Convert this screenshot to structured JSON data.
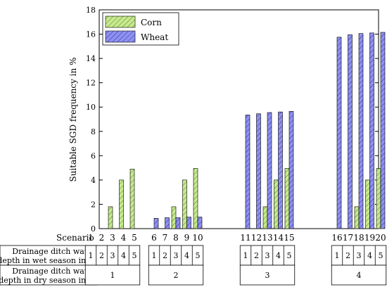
{
  "chart_data": {
    "type": "bar",
    "ylabel": "Suitable SGD frequency in %",
    "ylim": [
      0,
      18
    ],
    "yticks": [
      0,
      2,
      4,
      6,
      8,
      10,
      12,
      14,
      16,
      18
    ],
    "scenario_label": "Scenario",
    "categories": [
      "1",
      "2",
      "3",
      "4",
      "5",
      "6",
      "7",
      "8",
      "9",
      "10",
      "11",
      "12",
      "13",
      "14",
      "15",
      "16",
      "17",
      "18",
      "19",
      "20"
    ],
    "series": [
      {
        "name": "Corn",
        "color": "#c6ea8e",
        "values": [
          0,
          0,
          1.8,
          4.0,
          4.9,
          0,
          0,
          1.8,
          4.0,
          4.95,
          0,
          0,
          1.8,
          4.0,
          4.95,
          0,
          0,
          1.8,
          4.0,
          4.95
        ]
      },
      {
        "name": "Wheat",
        "color": "#8f91f0",
        "values": [
          0,
          0,
          0,
          0,
          0,
          0.85,
          0.9,
          0.9,
          0.95,
          0.95,
          9.35,
          9.45,
          9.55,
          9.6,
          9.65,
          15.75,
          15.95,
          16.05,
          16.1,
          16.15
        ]
      }
    ],
    "legend_position": "top-left",
    "grid": false
  },
  "table": {
    "row1_label_line1": "Drainage ditch water",
    "row1_label_line2": "depth in wet season in m",
    "row1_values": [
      "1",
      "2",
      "3",
      "4",
      "5"
    ],
    "row2_label_line1": "Drainage ditch water",
    "row2_label_line2": "depth in dry season in m",
    "row2_values": [
      "1",
      "2",
      "3",
      "4"
    ]
  }
}
